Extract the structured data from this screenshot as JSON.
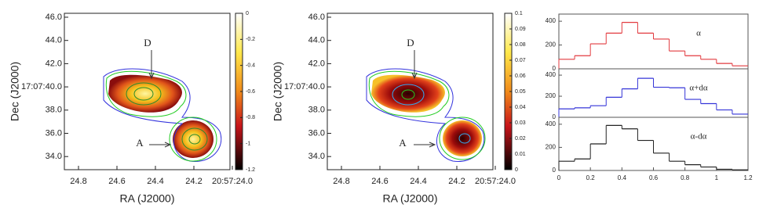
{
  "chart_data": [
    {
      "type": "image",
      "xlabel": "RA (J2000)",
      "ylabel": "Dec (J2000)",
      "xticks": [
        "24.8",
        "24.6",
        "24.4",
        "24.2",
        "20:57:24.0"
      ],
      "yticks": [
        "46.0",
        "44.0",
        "42.0",
        "17:07:40.0",
        "38.0",
        "36.0",
        "34.0"
      ],
      "annotations": [
        "D",
        "A"
      ],
      "colorbar_lim": [
        -1.2,
        0
      ],
      "colorbar_ticks": [
        0,
        -0.2,
        -0.4,
        -0.6,
        -0.8,
        -1,
        -1.2
      ]
    },
    {
      "type": "image",
      "xlabel": "RA (J2000)",
      "ylabel": "Dec (J2000)",
      "xticks": [
        "24.8",
        "24.6",
        "24.4",
        "24.2",
        "20:57:24.0"
      ],
      "yticks": [
        "46.0",
        "44.0",
        "42.0",
        "17:07:40.0",
        "38.0",
        "36.0",
        "34.0"
      ],
      "annotations": [
        "D",
        "A"
      ],
      "colorbar_lim": [
        0,
        0.1
      ],
      "colorbar_ticks": [
        0.1,
        0.09,
        0.08,
        0.07,
        0.06,
        0.05,
        0.04,
        0.03,
        0.02,
        0.01,
        0
      ]
    },
    {
      "type": "histogram",
      "label": "α",
      "color": "#e23a3f",
      "bins": [
        0,
        0.1,
        0.2,
        0.3,
        0.4,
        0.5,
        0.6,
        0.7,
        0.8,
        0.9,
        1.0,
        1.1,
        1.2
      ],
      "values": [
        80,
        110,
        210,
        300,
        390,
        300,
        250,
        150,
        110,
        80,
        45,
        25
      ],
      "xlim": [
        0,
        1.2
      ],
      "ylim": [
        0,
        460
      ],
      "yticks": [
        0,
        200,
        400
      ]
    },
    {
      "type": "histogram",
      "label": "α+dα",
      "color": "#3535d8",
      "bins": [
        0,
        0.1,
        0.2,
        0.3,
        0.4,
        0.5,
        0.6,
        0.7,
        0.8,
        0.9,
        1.0,
        1.1,
        1.2
      ],
      "values": [
        80,
        90,
        110,
        190,
        270,
        370,
        285,
        280,
        170,
        130,
        70,
        30
      ],
      "xlim": [
        0,
        1.2
      ],
      "ylim": [
        0,
        460
      ],
      "yticks": [
        0,
        200,
        400
      ]
    },
    {
      "type": "histogram",
      "label": "α-dα",
      "color": "#222222",
      "bins": [
        0,
        0.1,
        0.2,
        0.3,
        0.4,
        0.5,
        0.6,
        0.7,
        0.8,
        0.9,
        1.0,
        1.1,
        1.2
      ],
      "values": [
        80,
        100,
        230,
        390,
        360,
        260,
        150,
        80,
        50,
        30,
        10,
        5
      ],
      "xlim": [
        0,
        1.2
      ],
      "ylim": [
        0,
        460
      ],
      "yticks": [
        0,
        200,
        400
      ],
      "xticks": [
        0,
        0.2,
        0.4,
        0.6,
        0.8,
        1,
        1.2
      ]
    }
  ]
}
